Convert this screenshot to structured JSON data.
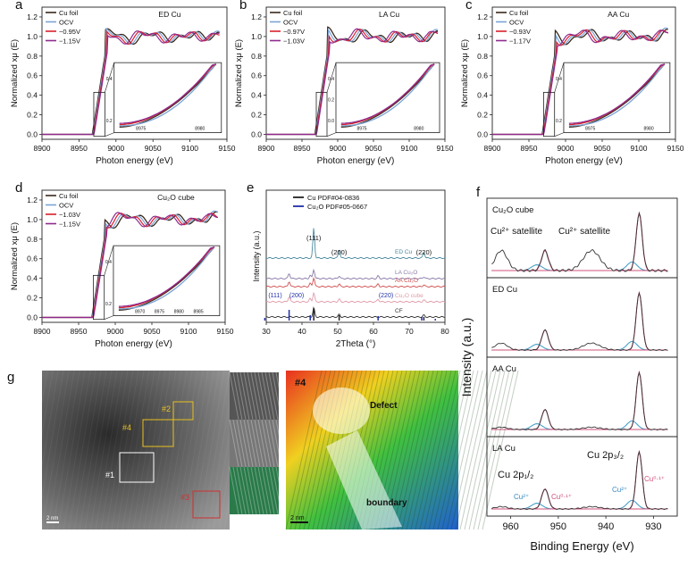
{
  "panels": {
    "a": {
      "letter": "a",
      "title": "ED Cu",
      "xlabel": "Photon energy (eV)",
      "ylabel": "Normalized xμ (E)",
      "legend": [
        "Cu foil",
        "OCV",
        "−0.95V",
        "−1.15V"
      ],
      "xticks": [
        "8900",
        "8950",
        "9000",
        "9050",
        "9100",
        "9150"
      ],
      "yticks": [
        "0.0",
        "0.2",
        "0.4",
        "0.6",
        "0.8",
        "1.0",
        "1.2"
      ],
      "inset_xticks": [
        "8975",
        "8980"
      ],
      "inset_yticks": [
        "0.2",
        "0.4"
      ]
    },
    "b": {
      "letter": "b",
      "title": "LA Cu",
      "xlabel": "Photon energy (eV)",
      "ylabel": "Normalized xμ (E)",
      "legend": [
        "Cu foil",
        "OCV",
        "−0.97V",
        "−1.03V"
      ],
      "xticks": [
        "8900",
        "8950",
        "9000",
        "9050",
        "9100",
        "9150"
      ],
      "yticks": [
        "0.0",
        "0.2",
        "0.4",
        "0.6",
        "0.8",
        "1.0",
        "1.2"
      ],
      "inset_xticks": [
        "8975",
        "8980"
      ],
      "inset_yticks": [
        "0.0",
        "0.2",
        "0.4"
      ]
    },
    "c": {
      "letter": "c",
      "title": "AA Cu",
      "xlabel": "Photon energy (eV)",
      "ylabel": "Normalized xμ (E)",
      "legend": [
        "Cu foil",
        "OCV",
        "−0.93V",
        "−1.17V"
      ],
      "xticks": [
        "8900",
        "8950",
        "9000",
        "9050",
        "9100",
        "9150"
      ],
      "yticks": [
        "0.0",
        "0.2",
        "0.4",
        "0.6",
        "0.8",
        "1.0",
        "1.2"
      ],
      "inset_xticks": [
        "8975",
        "8980"
      ],
      "inset_yticks": [
        "0.2",
        "0.4"
      ]
    },
    "d": {
      "letter": "d",
      "title": "Cu₂O cube",
      "xlabel": "Photon energy (eV)",
      "ylabel": "Normalized xμ (E)",
      "legend": [
        "Cu foil",
        "OCV",
        "−1.03V",
        "−1.15V"
      ],
      "xticks": [
        "8900",
        "8950",
        "9000",
        "9050",
        "9100",
        "9150"
      ],
      "yticks": [
        "0.0",
        "0.2",
        "0.4",
        "0.6",
        "0.8",
        "1.0",
        "1.2"
      ],
      "inset_xticks": [
        "8970",
        "8975",
        "8980",
        "8985"
      ],
      "inset_yticks": [
        "0.2",
        "0.4"
      ]
    },
    "e": {
      "letter": "e",
      "xlabel": "2Theta (°)",
      "ylabel": "Intensity (a.u.)",
      "legend": [
        "Cu PDF#04-0836",
        "Cu₂O PDF#05-0667"
      ],
      "xticks": [
        "30",
        "40",
        "50",
        "60",
        "70",
        "80"
      ],
      "peaks_cu": [
        "(111)",
        "(200)",
        "(220)"
      ],
      "peaks_cu2o": [
        "(111)",
        "(200)",
        "(220)"
      ],
      "traces": [
        "ED Cu",
        "LA Cu₂O",
        "AA Cu₂O",
        "Cu₂O cube",
        "CF"
      ]
    },
    "f": {
      "letter": "f",
      "xlabel": "Binding Energy (eV)",
      "ylabel": "Intensity (a.u.)",
      "xticks": [
        "960",
        "950",
        "940",
        "930"
      ],
      "sub": [
        "Cu₂O cube",
        "ED Cu",
        "AA Cu",
        "LA Cu"
      ],
      "sat1": "Cu²⁺ satellite",
      "sat2": "Cu²⁺ satellite",
      "p32": "Cu 2p₃/₂",
      "p12": "Cu 2p₁/₂",
      "cu2": "Cu²⁺",
      "cu01": "Cu⁰·¹⁺"
    },
    "g": {
      "letter": "g",
      "marks": [
        "#1",
        "#2",
        "#3",
        "#4"
      ],
      "scale": "2 nm",
      "scale2": "2 nm",
      "map_title": "#4",
      "defect": "Defect",
      "boundary": "boundary"
    }
  },
  "chart_data": [
    {
      "type": "line",
      "title": "ED Cu",
      "xlabel": "Photon energy (eV)",
      "ylabel": "Normalized xμ (E)",
      "xlim": [
        8900,
        9150
      ],
      "ylim": [
        -0.05,
        1.3
      ],
      "series": [
        {
          "name": "Cu foil"
        },
        {
          "name": "OCV"
        },
        {
          "name": "−0.95V"
        },
        {
          "name": "−1.15V"
        }
      ]
    },
    {
      "type": "line",
      "title": "LA Cu",
      "xlabel": "Photon energy (eV)",
      "ylabel": "Normalized xμ (E)",
      "xlim": [
        8900,
        9150
      ],
      "ylim": [
        -0.05,
        1.3
      ],
      "series": [
        {
          "name": "Cu foil"
        },
        {
          "name": "OCV"
        },
        {
          "name": "−0.97V"
        },
        {
          "name": "−1.03V"
        }
      ]
    },
    {
      "type": "line",
      "title": "AA Cu",
      "xlabel": "Photon energy (eV)",
      "ylabel": "Normalized xμ (E)",
      "xlim": [
        8900,
        9150
      ],
      "ylim": [
        -0.05,
        1.3
      ],
      "series": [
        {
          "name": "Cu foil"
        },
        {
          "name": "OCV"
        },
        {
          "name": "−0.93V"
        },
        {
          "name": "−1.17V"
        }
      ]
    },
    {
      "type": "line",
      "title": "Cu₂O cube",
      "xlabel": "Photon energy (eV)",
      "ylabel": "Normalized xμ (E)",
      "xlim": [
        8900,
        9150
      ],
      "ylim": [
        -0.05,
        1.3
      ],
      "series": [
        {
          "name": "Cu foil"
        },
        {
          "name": "OCV"
        },
        {
          "name": "−1.03V"
        },
        {
          "name": "−1.15V"
        }
      ]
    },
    {
      "type": "line",
      "xlabel": "2Theta (°)",
      "ylabel": "Intensity (a.u.)",
      "xlim": [
        30,
        80
      ],
      "series": [
        {
          "name": "ED Cu"
        },
        {
          "name": "LA Cu₂O"
        },
        {
          "name": "AA Cu₂O"
        },
        {
          "name": "Cu₂O cube"
        },
        {
          "name": "CF"
        }
      ]
    },
    {
      "type": "line",
      "xlabel": "Binding Energy (eV)",
      "ylabel": "Intensity (a.u.)",
      "xlim": [
        965,
        925
      ],
      "series": [
        {
          "name": "Cu₂O cube"
        },
        {
          "name": "ED Cu"
        },
        {
          "name": "AA Cu"
        },
        {
          "name": "LA Cu"
        }
      ]
    }
  ],
  "colors": {
    "foil": "#3a2a1a",
    "ocv": "#7aa3d6",
    "v1": "#d8202a",
    "v2": "#8e2a8e",
    "xrd_cu": "#222222",
    "xrd_cu2o": "#1f2fa8"
  }
}
